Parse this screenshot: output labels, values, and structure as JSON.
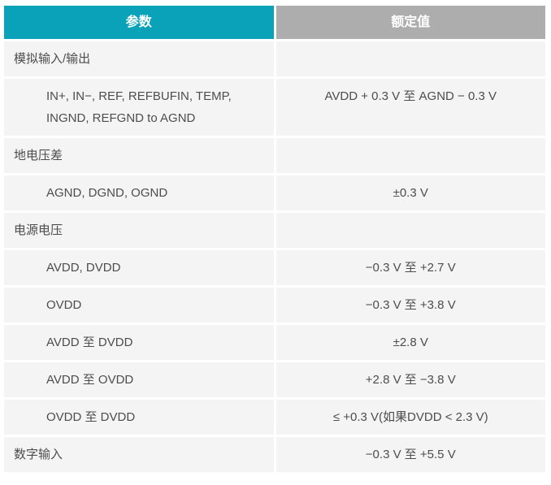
{
  "table": {
    "headers": {
      "parameter": "参数",
      "rated_value": "额定值"
    },
    "rows": [
      {
        "param": "模拟输入/输出",
        "value": "",
        "indent": false
      },
      {
        "param": "IN+, IN−, REF, REFBUFIN, TEMP, INGND, REFGND to AGND",
        "value": "AVDD + 0.3 V 至 AGND − 0.3 V",
        "indent": true
      },
      {
        "param": "地电压差",
        "value": "",
        "indent": false
      },
      {
        "param": "AGND, DGND, OGND",
        "value": "±0.3 V",
        "indent": true
      },
      {
        "param": "电源电压",
        "value": "",
        "indent": false
      },
      {
        "param": "AVDD, DVDD",
        "value": "−0.3 V 至 +2.7 V",
        "indent": true
      },
      {
        "param": "OVDD",
        "value": "−0.3 V 至 +3.8 V",
        "indent": true
      },
      {
        "param": "AVDD 至 DVDD",
        "value": "±2.8 V",
        "indent": true
      },
      {
        "param": "AVDD 至 OVDD",
        "value": "+2.8 V 至 −3.8 V",
        "indent": true
      },
      {
        "param": "OVDD 至 DVDD",
        "value": "≤ +0.3 V(如果DVDD < 2.3 V)",
        "indent": true
      },
      {
        "param": "数字输入",
        "value": "−0.3 V 至 +5.5 V",
        "indent": false
      }
    ]
  },
  "colors": {
    "header_param_bg": "#0aa2b8",
    "header_value_bg": "#adadad",
    "header_text": "#ffffff",
    "row_bg": "#f4f4f5",
    "body_text": "#4d4d4d"
  },
  "chart_data": {
    "type": "table",
    "title": "",
    "columns": [
      "参数",
      "额定值"
    ],
    "rows": [
      [
        "模拟输入/输出",
        ""
      ],
      [
        "IN+, IN−, REF, REFBUFIN, TEMP, INGND, REFGND to AGND",
        "AVDD + 0.3 V 至 AGND − 0.3 V"
      ],
      [
        "地电压差",
        ""
      ],
      [
        "AGND, DGND, OGND",
        "±0.3 V"
      ],
      [
        "电源电压",
        ""
      ],
      [
        "AVDD, DVDD",
        "−0.3 V 至 +2.7 V"
      ],
      [
        "OVDD",
        "−0.3 V 至 +3.8 V"
      ],
      [
        "AVDD 至 DVDD",
        "±2.8 V"
      ],
      [
        "AVDD 至 OVDD",
        "+2.8 V 至 −3.8 V"
      ],
      [
        "OVDD 至 DVDD",
        "≤ +0.3 V(如果DVDD < 2.3 V)"
      ],
      [
        "数字输入",
        "−0.3 V 至 +5.5 V"
      ]
    ]
  }
}
